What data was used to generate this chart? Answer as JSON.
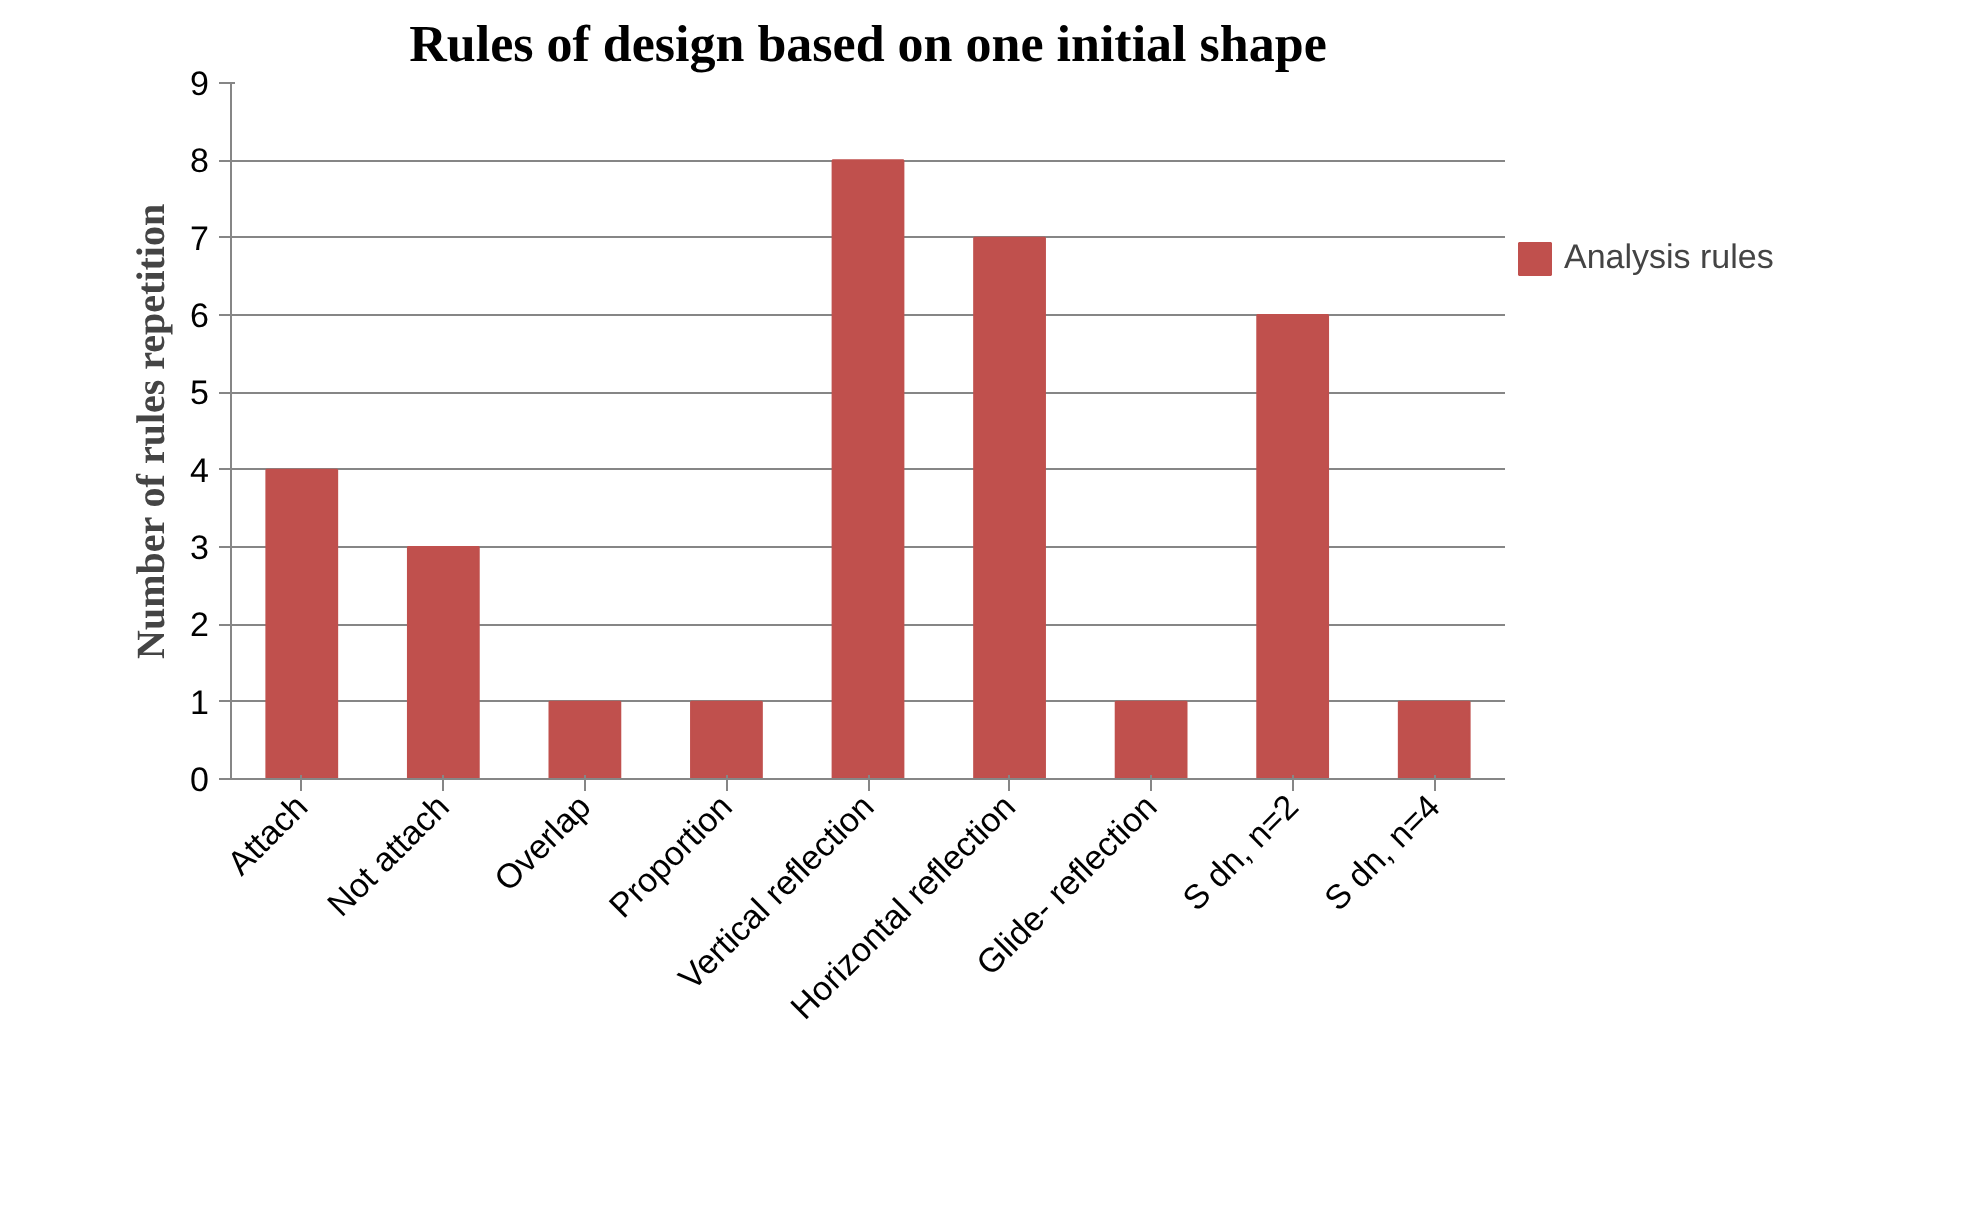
{
  "chart_data": {
    "type": "bar",
    "title": "Rules of design based on one initial shape",
    "ylabel": "Number of rules repetition",
    "categories": [
      "Attach",
      "Not attach",
      "Overlap",
      "Proportion",
      "Vertical reflection",
      "Horizontal reflection",
      "Glide- reflection",
      "S dn, n=2",
      "S dn, n=4"
    ],
    "series": [
      {
        "name": "Analysis rules",
        "color": "#c0504d",
        "values": [
          4,
          3,
          1,
          1,
          8,
          7,
          1,
          6,
          1
        ]
      }
    ],
    "ylim": [
      0,
      9
    ],
    "yticks": [
      0,
      1,
      2,
      3,
      4,
      5,
      6,
      7,
      8,
      9
    ],
    "grid": "y",
    "legend": "right"
  }
}
